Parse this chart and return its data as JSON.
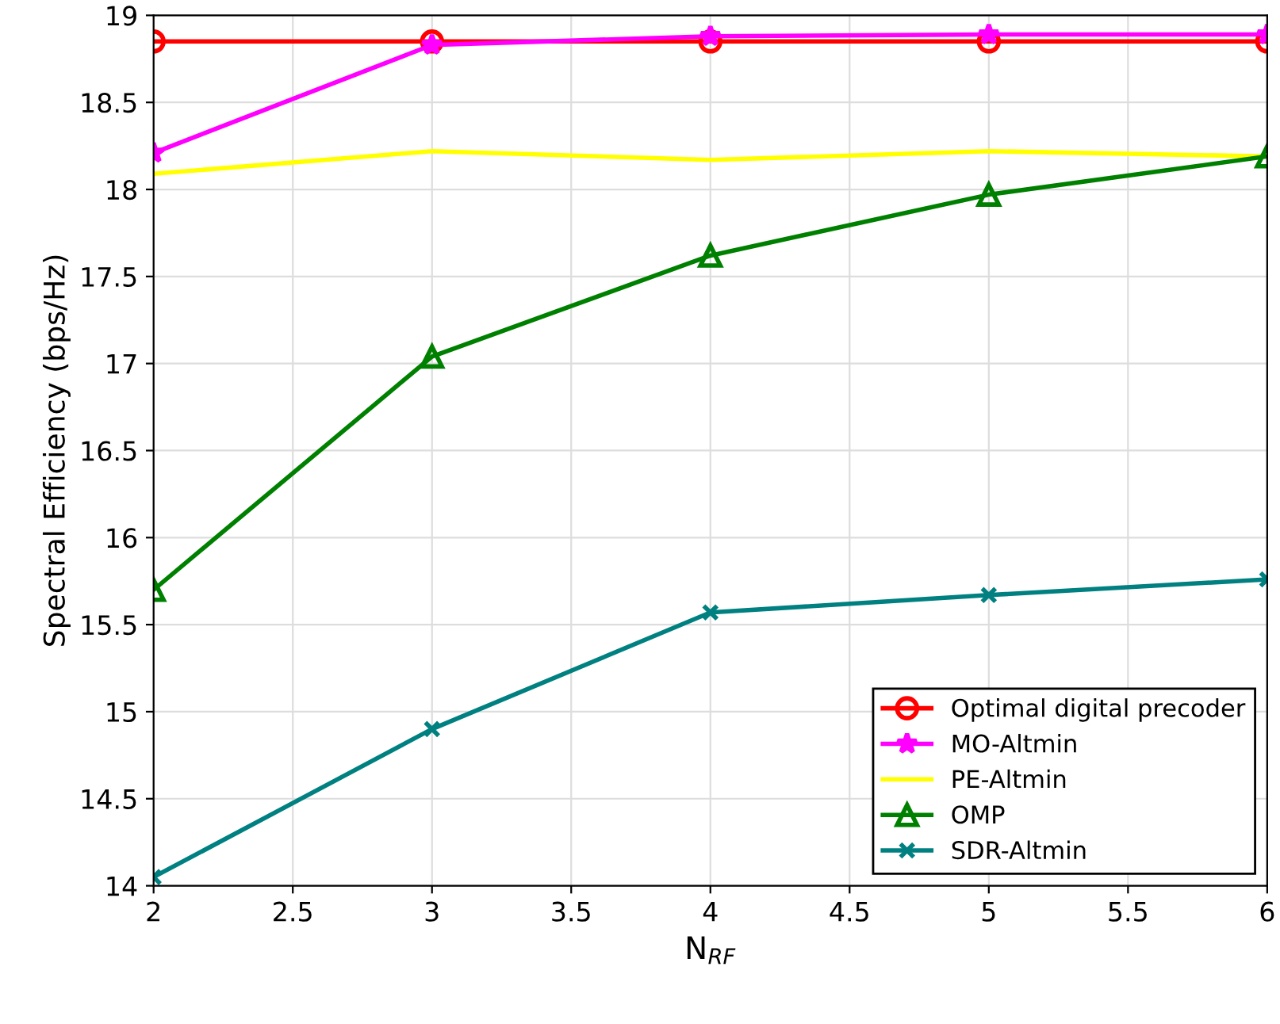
{
  "chart_data": {
    "type": "line",
    "xlabel": "N$_{RF}$",
    "ylabel": "Spectral Efficiency (bps/Hz)",
    "x": [
      2,
      3,
      4,
      5,
      6
    ],
    "series": [
      {
        "name": "Optimal digital precoder",
        "color": "#ff0000",
        "marker": "circle",
        "values": [
          18.85,
          18.85,
          18.85,
          18.85,
          18.85
        ]
      },
      {
        "name": "MO-Altmin",
        "color": "#ff00ff",
        "marker": "star",
        "values": [
          18.21,
          18.83,
          18.88,
          18.89,
          18.89
        ]
      },
      {
        "name": "PE-Altmin",
        "color": "#ffff00",
        "marker": "none",
        "values": [
          18.09,
          18.22,
          18.17,
          18.22,
          18.19
        ]
      },
      {
        "name": "OMP",
        "color": "#008000",
        "marker": "triangle",
        "values": [
          15.7,
          17.04,
          17.62,
          17.97,
          18.19
        ]
      },
      {
        "name": "SDR-Altmin",
        "color": "#008080",
        "marker": "cross",
        "values": [
          14.05,
          14.9,
          15.57,
          15.67,
          15.76
        ]
      }
    ],
    "xlim": [
      2,
      6
    ],
    "xticks": [
      2,
      2.5,
      3,
      3.5,
      4,
      4.5,
      5,
      5.5,
      6
    ],
    "ylim": [
      14,
      19
    ],
    "yticks": [
      14,
      14.5,
      15,
      15.5,
      16,
      16.5,
      17,
      17.5,
      18,
      18.5,
      19
    ],
    "grid": true,
    "legend": "lower right",
    "line_style": "solid"
  }
}
